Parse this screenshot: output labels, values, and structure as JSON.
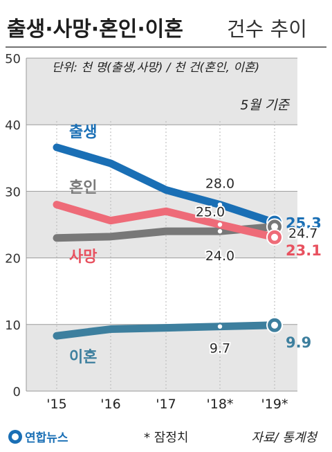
{
  "header": {
    "title_bold": "출생·사망·혼인·이혼",
    "title_light": "건수 추이"
  },
  "unit_note": "단위: 천 명(출생,사망) / 천 건(혼인, 이혼)",
  "basis_note": "5월 기준",
  "footnote": "* 잠정치",
  "source": "자료/ 통계청",
  "logo_text": "연합뉴스",
  "chart_data": {
    "type": "line",
    "x": [
      "'15",
      "'16",
      "'17",
      "'18*",
      "'19*"
    ],
    "ylim": [
      0,
      50
    ],
    "yticks": [
      "0",
      "10",
      "20",
      "30",
      "40",
      "50"
    ],
    "grid": true,
    "series": [
      {
        "name": "출생",
        "color": "#1a6fb5",
        "values": [
          36.6,
          34.2,
          30.2,
          28.0,
          25.3
        ],
        "labels": [
          {
            "i": 3,
            "text": "28.0"
          },
          {
            "i": 4,
            "text": "25.3",
            "color": "#1a6fb5",
            "bold": true
          }
        ]
      },
      {
        "name": "혼인",
        "color": "#787878",
        "values": [
          23.0,
          23.2,
          24.0,
          24.0,
          24.7
        ],
        "labels": [
          {
            "i": 3,
            "text": "24.0"
          },
          {
            "i": 4,
            "text": "24.7"
          }
        ]
      },
      {
        "name": "사망",
        "color": "#ee6b78",
        "values": [
          28.0,
          25.6,
          27.0,
          25.0,
          23.1
        ],
        "labels": [
          {
            "i": 3,
            "text": "25.0"
          },
          {
            "i": 4,
            "text": "23.1",
            "color": "#e8515f",
            "bold": true
          }
        ]
      },
      {
        "name": "이혼",
        "color": "#3d7f9e",
        "values": [
          8.3,
          9.3,
          9.5,
          9.7,
          9.9
        ],
        "labels": [
          {
            "i": 3,
            "text": "9.7"
          },
          {
            "i": 4,
            "text": "9.9",
            "color": "#3d7f9e",
            "bold": true
          }
        ]
      }
    ]
  }
}
